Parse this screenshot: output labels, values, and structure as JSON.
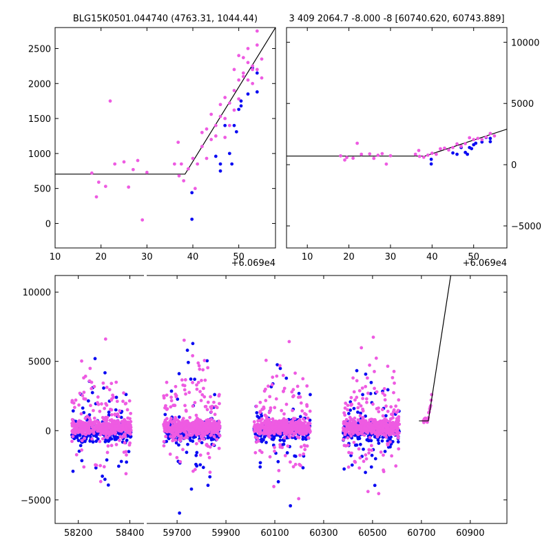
{
  "colors": {
    "series_a": "#0a0af2",
    "series_b": "#ee5be2",
    "model": "#000000"
  },
  "chart_data": [
    {
      "type": "scatter",
      "title": "BLG15K0501.044740 (4763.31, 1044.44)",
      "xlim": [
        10,
        58
      ],
      "ylim": [
        -350,
        2800
      ],
      "xticks": [
        "10",
        "20",
        "30",
        "40",
        "50"
      ],
      "yticks": [
        "0",
        "500",
        "1000",
        "1500",
        "2000",
        "2500"
      ],
      "xticks_v": [
        10,
        20,
        30,
        40,
        50
      ],
      "yticks_v": [
        0,
        500,
        1000,
        1500,
        2000,
        2500
      ],
      "offset_text": "+6.069e4",
      "yaxis_side": "left",
      "model": {
        "x": [
          10,
          38.3,
          58
        ],
        "y": [
          705,
          705,
          2800
        ]
      },
      "series": [
        {
          "name": "blue",
          "color": "#0a0af2",
          "x": [
            39.8,
            39.8,
            45,
            46,
            46,
            47,
            48,
            48.5,
            49,
            49.5,
            50,
            50.5,
            50.5,
            52,
            53,
            54,
            54
          ],
          "y": [
            60,
            440,
            960,
            850,
            750,
            1400,
            1000,
            850,
            1400,
            1310,
            1630,
            1750,
            1680,
            1850,
            2220,
            1880,
            2150
          ]
        },
        {
          "name": "pink",
          "color": "#ee5be2",
          "x": [
            18,
            19,
            19.5,
            21,
            22,
            23,
            25,
            26,
            27,
            28,
            29,
            30,
            36,
            36.8,
            37,
            37.5,
            38,
            39,
            40,
            40.5,
            41,
            42,
            42,
            43,
            43,
            44,
            44,
            45,
            45,
            46,
            46,
            47,
            47,
            47,
            48,
            48,
            49,
            49,
            49,
            50,
            50,
            50,
            51,
            51,
            51,
            52,
            52,
            52,
            53,
            53,
            53,
            54,
            54,
            54,
            55,
            55
          ],
          "y": [
            720,
            380,
            590,
            530,
            1750,
            850,
            880,
            520,
            770,
            900,
            50,
            730,
            850,
            1160,
            680,
            850,
            610,
            780,
            930,
            500,
            850,
            1300,
            1100,
            1350,
            930,
            1200,
            1560,
            1400,
            1250,
            1700,
            1530,
            1500,
            1800,
            1230,
            1720,
            1400,
            2200,
            1900,
            1620,
            2400,
            2050,
            1780,
            2150,
            2100,
            2370,
            2050,
            2500,
            2300,
            2250,
            2000,
            2200,
            2750,
            2550,
            2200,
            2350,
            2080
          ]
        }
      ]
    },
    {
      "type": "scatter",
      "title": "3 409 2064.7 -8.000 -8 [60740.620, 60743.889]",
      "xlim": [
        5,
        58
      ],
      "ylim": [
        -6800,
        11200
      ],
      "xticks": [
        "10",
        "20",
        "30",
        "40",
        "50"
      ],
      "yticks": [
        "−5000",
        "0",
        "5000",
        "10000"
      ],
      "xticks_v": [
        10,
        20,
        30,
        40,
        50
      ],
      "yticks_v": [
        -5000,
        0,
        5000,
        10000
      ],
      "offset_text": "+6.069e4",
      "yaxis_side": "right",
      "model": {
        "x": [
          5,
          38.3,
          58
        ],
        "y": [
          705,
          705,
          2900
        ]
      },
      "series": [
        {
          "name": "blue",
          "color": "#0a0af2",
          "x": [
            39.8,
            39.8,
            45,
            46,
            47,
            48,
            48.5,
            49,
            49.5,
            50,
            50.5,
            52,
            53,
            54,
            54
          ],
          "y": [
            60,
            440,
            960,
            850,
            1400,
            1000,
            850,
            1400,
            1310,
            1630,
            1750,
            1850,
            2220,
            1880,
            2150
          ]
        },
        {
          "name": "pink",
          "color": "#ee5be2",
          "x": [
            18,
            19,
            19.5,
            21,
            22,
            23,
            25,
            26,
            27,
            28,
            29,
            30,
            36,
            36.8,
            37,
            38,
            39,
            40,
            41,
            42,
            43,
            44,
            45,
            46,
            47,
            48,
            49,
            50,
            51,
            52,
            53,
            54,
            55
          ],
          "y": [
            720,
            380,
            590,
            530,
            1750,
            850,
            880,
            520,
            770,
            900,
            50,
            730,
            850,
            1160,
            680,
            610,
            780,
            930,
            850,
            1300,
            1350,
            1200,
            1400,
            1700,
            1500,
            1720,
            2200,
            2050,
            2150,
            2050,
            2250,
            2550,
            2350
          ]
        }
      ]
    },
    {
      "type": "scatter",
      "title": "",
      "segments": [
        {
          "xlim": [
            58110,
            58460
          ],
          "xticks": [
            "58200",
            "58400"
          ],
          "xticks_v": [
            58200,
            58400
          ]
        },
        {
          "xlim": [
            59570,
            61050
          ],
          "xticks": [
            "59700",
            "59900",
            "60100",
            "60300",
            "60500",
            "60700",
            "60900"
          ],
          "xticks_v": [
            59700,
            59900,
            60100,
            60300,
            60500,
            60700,
            60900
          ]
        }
      ],
      "ylim": [
        -6700,
        11200
      ],
      "yticks": [
        "−5000",
        "0",
        "5000",
        "10000"
      ],
      "yticks_v": [
        -5000,
        0,
        5000,
        10000
      ],
      "seasons": [
        {
          "center": 58290,
          "halfwidth": 115,
          "segment": 0
        },
        {
          "center": 59760,
          "halfwidth": 115,
          "segment": 1
        },
        {
          "center": 60130,
          "halfwidth": 115,
          "segment": 1
        },
        {
          "center": 60495,
          "halfwidth": 115,
          "segment": 1
        }
      ],
      "model": {
        "x": [
          60690,
          60728.3,
          60820
        ],
        "y": [
          705,
          705,
          11200
        ]
      },
      "event_points": {
        "x": [
          60708,
          60710,
          60712,
          60714,
          60716,
          60718,
          60720,
          60722,
          60724,
          60726,
          60728,
          60730,
          60732,
          60734,
          60736,
          60738,
          60740,
          60742
        ],
        "y": [
          720,
          590,
          850,
          770,
          900,
          730,
          850,
          680,
          610,
          780,
          930,
          1300,
          1350,
          1560,
          1700,
          1800,
          2200,
          2600
        ]
      }
    }
  ]
}
